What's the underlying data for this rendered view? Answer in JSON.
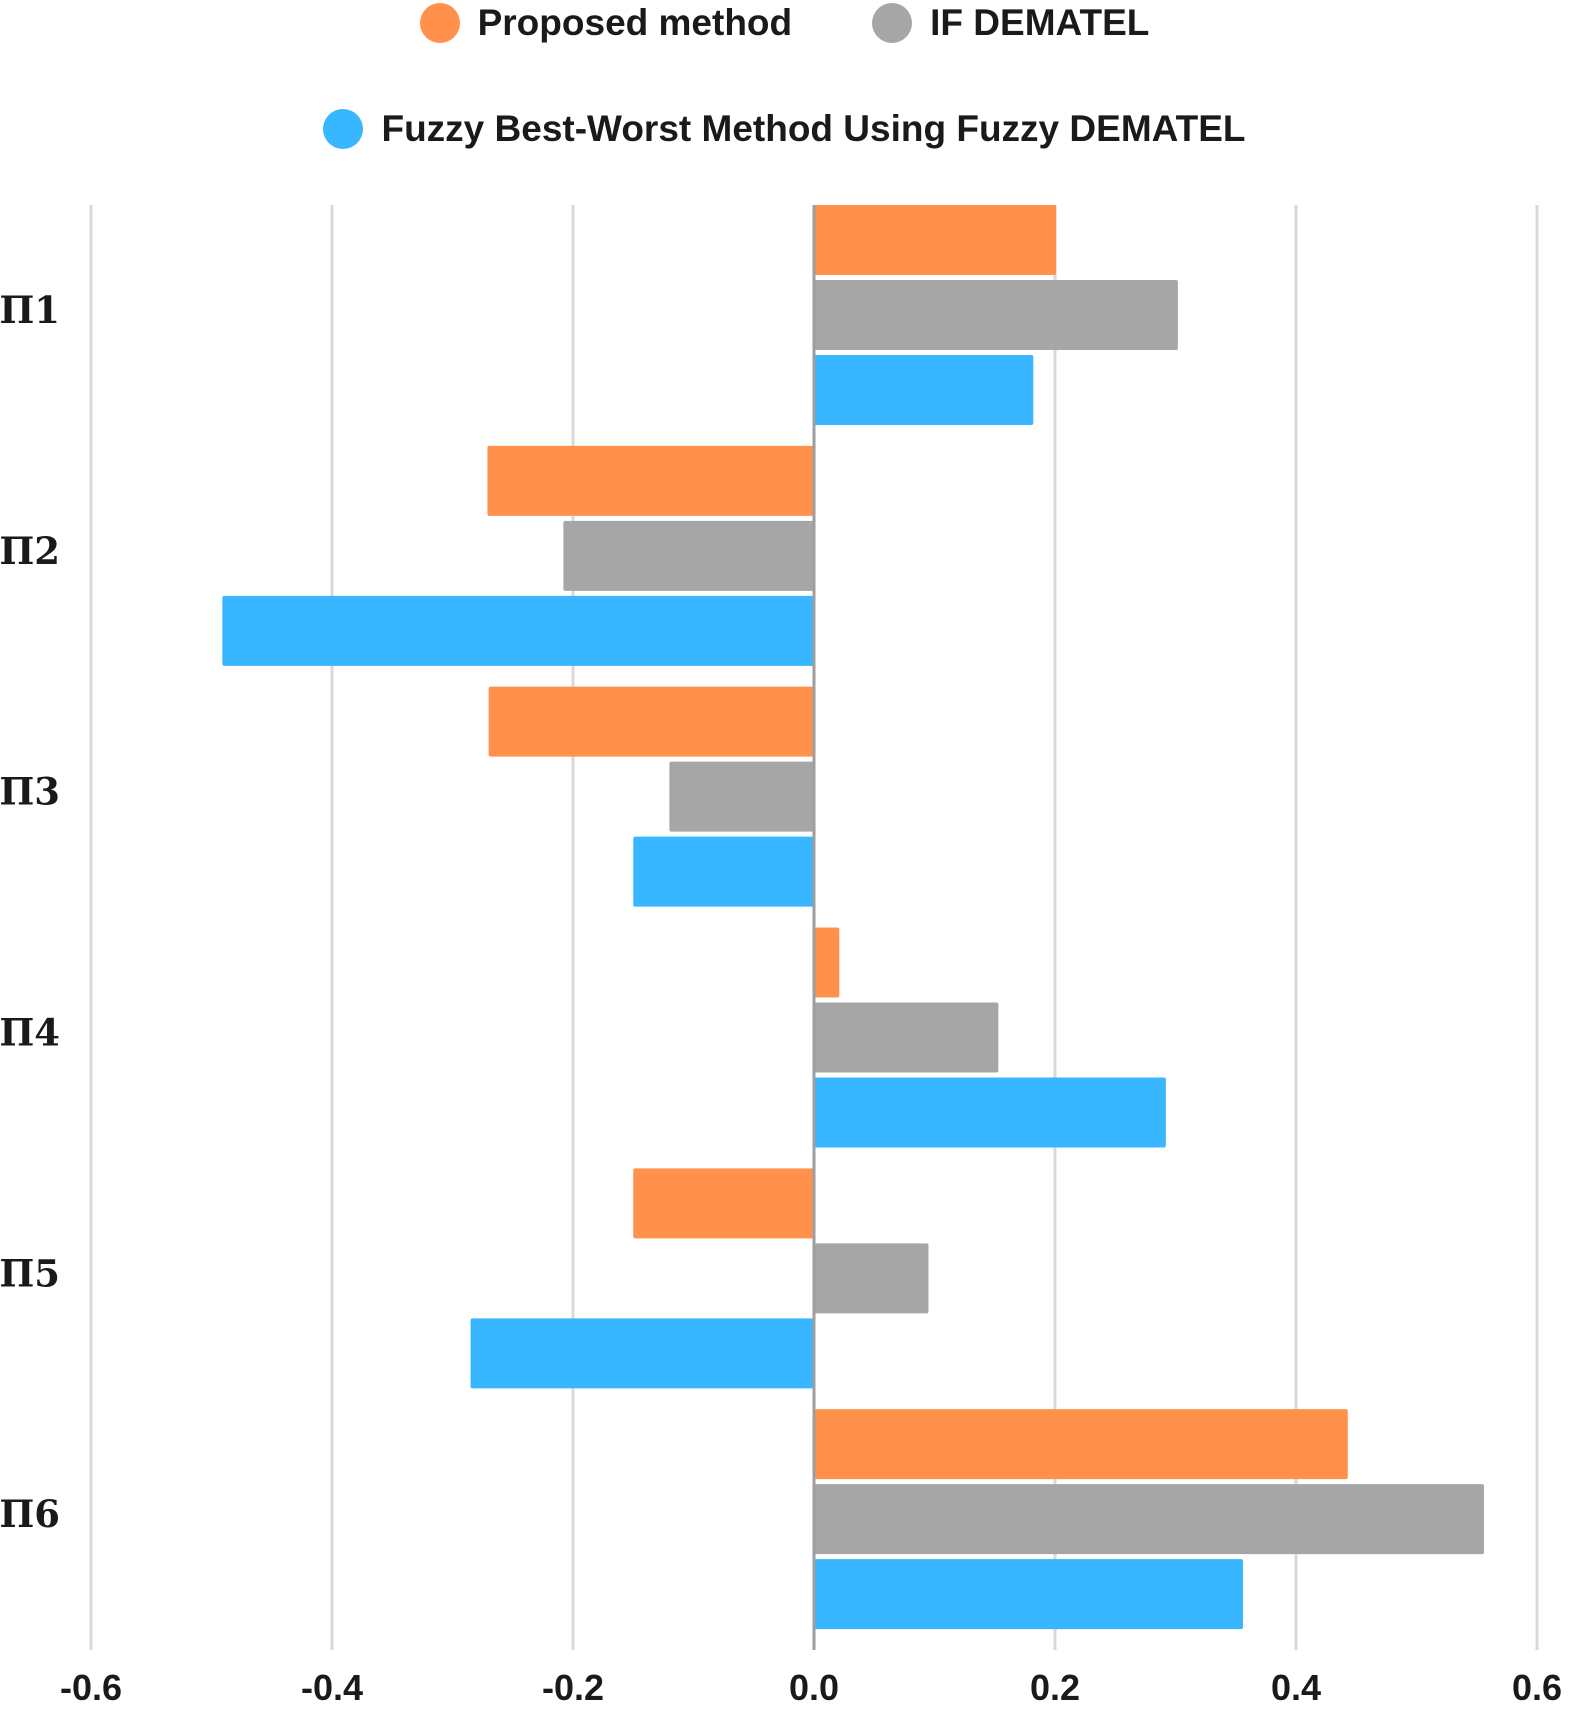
{
  "chart_data": {
    "type": "bar",
    "orientation": "horizontal",
    "categories": [
      "Π1",
      "Π2",
      "Π3",
      "Π4",
      "Π5",
      "Π6"
    ],
    "series": [
      {
        "name": "Proposed method",
        "color": "#FF914D",
        "values": [
          0.201,
          -0.271,
          -0.27,
          0.021,
          -0.15,
          0.443
        ]
      },
      {
        "name": "IF DEMATEL",
        "color": "#A6A6A6",
        "values": [
          0.302,
          -0.208,
          -0.12,
          0.153,
          0.095,
          0.556
        ]
      },
      {
        "name": "Fuzzy Best-Worst Method Using Fuzzy DEMATEL",
        "color": "#38B6FF",
        "values": [
          0.182,
          -0.491,
          -0.15,
          0.292,
          -0.285,
          0.356
        ]
      }
    ],
    "xlim": [
      -0.6,
      0.6
    ],
    "xticks": [
      "-0.6",
      "-0.4",
      "-0.2",
      "0.0",
      "0.2",
      "0.4",
      "0.6"
    ],
    "grid": true,
    "legend_position": "top-center",
    "title": "",
    "xlabel": "",
    "ylabel": ""
  }
}
